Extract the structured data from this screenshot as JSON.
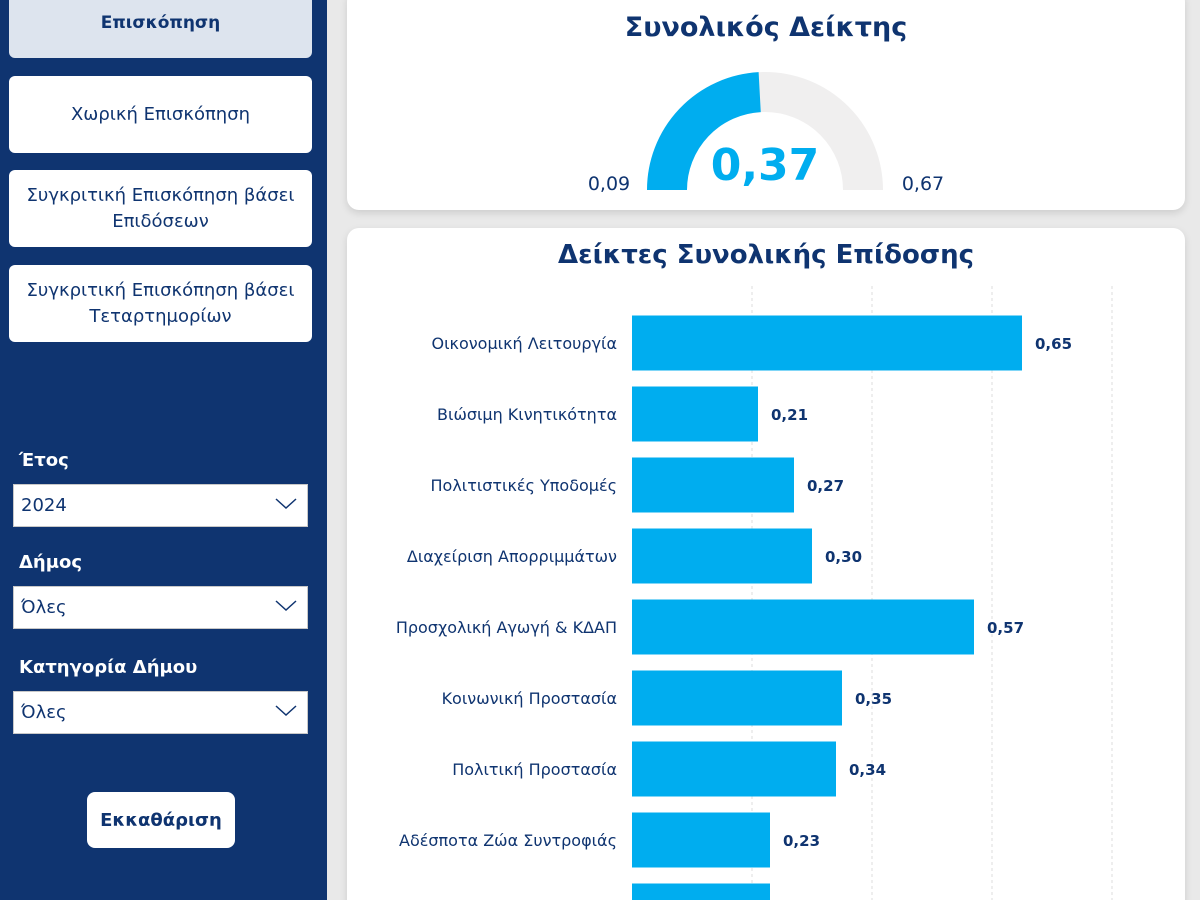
{
  "sidebar": {
    "nav": [
      {
        "label": "Επισκόπηση",
        "active": true
      },
      {
        "label": "Χωρική Επισκόπηση",
        "active": false
      },
      {
        "label": "Συγκριτική Επισκόπηση βάσει Επιδόσεων",
        "active": false
      },
      {
        "label": "Συγκριτική Επισκόπηση βάσει Τεταρτημορίων",
        "active": false
      }
    ],
    "filters": {
      "year": {
        "label": "Έτος",
        "value": "2024"
      },
      "municipality": {
        "label": "Δήμος",
        "value": "Όλες"
      },
      "category": {
        "label": "Κατηγορία Δήμου",
        "value": "Όλες"
      }
    },
    "clear_label": "Εκκαθάριση"
  },
  "gauge": {
    "title": "Συνολικός Δείκτης",
    "value_label": "0,37",
    "min_label": "0,09",
    "max_label": "0,67",
    "value": 0.37,
    "min": 0.09,
    "max": 0.67,
    "fill_color": "#00adef",
    "track_color": "#f0efef"
  },
  "bars": {
    "title": "Δείκτες Συνολικής Επίδοσης",
    "color": "#00adef"
  },
  "chart_data": {
    "type": "bar",
    "orientation": "horizontal",
    "title": "Δείκτες Συνολικής Επίδοσης",
    "categories": [
      "Οικονομική Λειτουργία",
      "Βιώσιμη Κινητικότητα",
      "Πολιτιστικές Υποδομές",
      "Διαχείριση Απορριμμάτων",
      "Προσχολική Αγωγή & ΚΔΑΠ",
      "Κοινωνική Προστασία",
      "Πολιτική Προστασία",
      "Αδέσποτα Ζώα Συντροφιάς",
      ""
    ],
    "values": [
      0.65,
      0.21,
      0.27,
      0.3,
      0.57,
      0.35,
      0.34,
      0.23,
      0.23
    ],
    "value_labels": [
      "0,65",
      "0,21",
      "0,27",
      "0,30",
      "0,57",
      "0,35",
      "0,34",
      "0,23",
      ""
    ],
    "xlim": [
      0,
      0.8
    ],
    "grid": true
  }
}
